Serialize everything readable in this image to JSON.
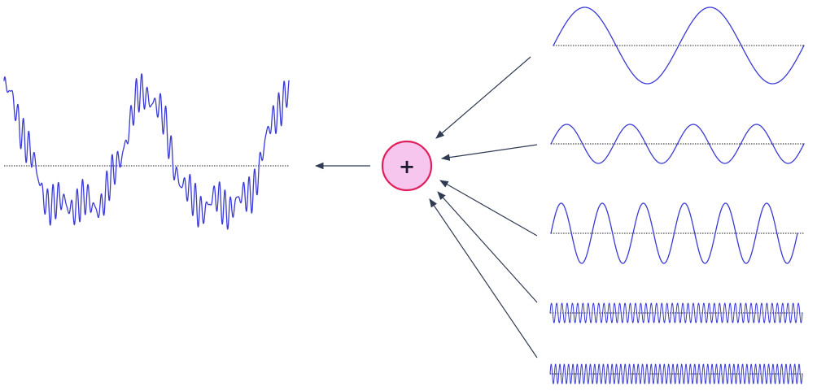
{
  "adder": {
    "symbol": "+"
  },
  "colors": {
    "wave": "#3a3ad6",
    "adder_fill": "#f6c6ef",
    "adder_stroke": "#e0205c",
    "arrow": "#2f3b52",
    "baseline": "#222222"
  },
  "components": [
    {
      "name": "component-wave-1",
      "cycles": 2
    },
    {
      "name": "component-wave-2",
      "cycles": 4
    },
    {
      "name": "component-wave-3",
      "cycles": 6
    },
    {
      "name": "component-wave-4",
      "cycles": 48
    },
    {
      "name": "component-wave-5",
      "cycles": 58
    }
  ],
  "sum_wave": {
    "name": "sum-wave"
  }
}
